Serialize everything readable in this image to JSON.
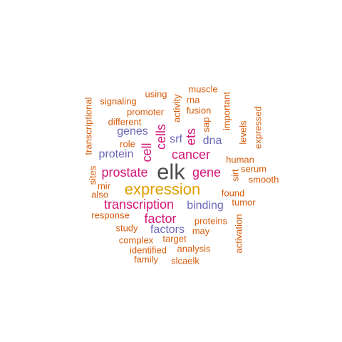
{
  "palette": {
    "grey": "#4d4d4d",
    "gold": "#e09e00",
    "magenta": "#d4177a",
    "purple": "#6d67b8",
    "orange": "#d65c0c"
  },
  "words": [
    {
      "id": "elk",
      "text": "elk",
      "color": "grey",
      "weight": 10
    },
    {
      "id": "expression",
      "text": "expression",
      "color": "gold",
      "weight": 8
    },
    {
      "id": "cancer",
      "text": "cancer",
      "color": "magenta",
      "weight": 6
    },
    {
      "id": "cells",
      "text": "cells",
      "color": "magenta",
      "weight": 6
    },
    {
      "id": "gene",
      "text": "gene",
      "color": "magenta",
      "weight": 6
    },
    {
      "id": "prostate",
      "text": "prostate",
      "color": "magenta",
      "weight": 6
    },
    {
      "id": "transcription",
      "text": "transcription",
      "color": "magenta",
      "weight": 6
    },
    {
      "id": "factor",
      "text": "factor",
      "color": "magenta",
      "weight": 6
    },
    {
      "id": "cell",
      "text": "cell",
      "color": "magenta",
      "weight": 6
    },
    {
      "id": "ets",
      "text": "ets",
      "color": "magenta",
      "weight": 6
    },
    {
      "id": "genes",
      "text": "genes",
      "color": "purple",
      "weight": 5
    },
    {
      "id": "protein",
      "text": "protein",
      "color": "purple",
      "weight": 5
    },
    {
      "id": "binding",
      "text": "binding",
      "color": "purple",
      "weight": 5
    },
    {
      "id": "factors",
      "text": "factors",
      "color": "purple",
      "weight": 5
    },
    {
      "id": "srf",
      "text": "srf",
      "color": "purple",
      "weight": 5
    },
    {
      "id": "dna",
      "text": "dna",
      "color": "purple",
      "weight": 5
    },
    {
      "id": "transcriptional",
      "text": "transcriptional",
      "color": "orange",
      "weight": 3
    },
    {
      "id": "signaling",
      "text": "signaling",
      "color": "orange",
      "weight": 3
    },
    {
      "id": "using",
      "text": "using",
      "color": "orange",
      "weight": 3
    },
    {
      "id": "muscle",
      "text": "muscle",
      "color": "orange",
      "weight": 3
    },
    {
      "id": "rna",
      "text": "rna",
      "color": "orange",
      "weight": 3
    },
    {
      "id": "activity",
      "text": "activity",
      "color": "orange",
      "weight": 3
    },
    {
      "id": "important",
      "text": "important",
      "color": "orange",
      "weight": 3
    },
    {
      "id": "promoter",
      "text": "promoter",
      "color": "orange",
      "weight": 3
    },
    {
      "id": "fusion",
      "text": "fusion",
      "color": "orange",
      "weight": 3
    },
    {
      "id": "different",
      "text": "different",
      "color": "orange",
      "weight": 3
    },
    {
      "id": "sap",
      "text": "sap",
      "color": "orange",
      "weight": 3
    },
    {
      "id": "levels",
      "text": "levels",
      "color": "orange",
      "weight": 3
    },
    {
      "id": "expressed",
      "text": "expressed",
      "color": "orange",
      "weight": 3
    },
    {
      "id": "role",
      "text": "role",
      "color": "orange",
      "weight": 3
    },
    {
      "id": "human",
      "text": "human",
      "color": "orange",
      "weight": 3
    },
    {
      "id": "sites",
      "text": "sites",
      "color": "orange",
      "weight": 3
    },
    {
      "id": "serum",
      "text": "serum",
      "color": "orange",
      "weight": 3
    },
    {
      "id": "sirt",
      "text": "sirt",
      "color": "orange",
      "weight": 3
    },
    {
      "id": "smooth",
      "text": "smooth",
      "color": "orange",
      "weight": 3
    },
    {
      "id": "mir",
      "text": "mir",
      "color": "orange",
      "weight": 3
    },
    {
      "id": "also",
      "text": "also",
      "color": "orange",
      "weight": 3
    },
    {
      "id": "found",
      "text": "found",
      "color": "orange",
      "weight": 3
    },
    {
      "id": "tumor",
      "text": "tumor",
      "color": "orange",
      "weight": 3
    },
    {
      "id": "response",
      "text": "response",
      "color": "orange",
      "weight": 3
    },
    {
      "id": "proteins",
      "text": "proteins",
      "color": "orange",
      "weight": 3
    },
    {
      "id": "study",
      "text": "study",
      "color": "orange",
      "weight": 3
    },
    {
      "id": "may",
      "text": "may",
      "color": "orange",
      "weight": 3
    },
    {
      "id": "activation",
      "text": "activation",
      "color": "orange",
      "weight": 3
    },
    {
      "id": "complex",
      "text": "complex",
      "color": "orange",
      "weight": 3
    },
    {
      "id": "target",
      "text": "target",
      "color": "orange",
      "weight": 3
    },
    {
      "id": "identified",
      "text": "identified",
      "color": "orange",
      "weight": 3
    },
    {
      "id": "analysis",
      "text": "analysis",
      "color": "orange",
      "weight": 3
    },
    {
      "id": "family",
      "text": "family",
      "color": "orange",
      "weight": 3
    },
    {
      "id": "slcaelk",
      "text": "slcaelk",
      "color": "orange",
      "weight": 3
    }
  ]
}
